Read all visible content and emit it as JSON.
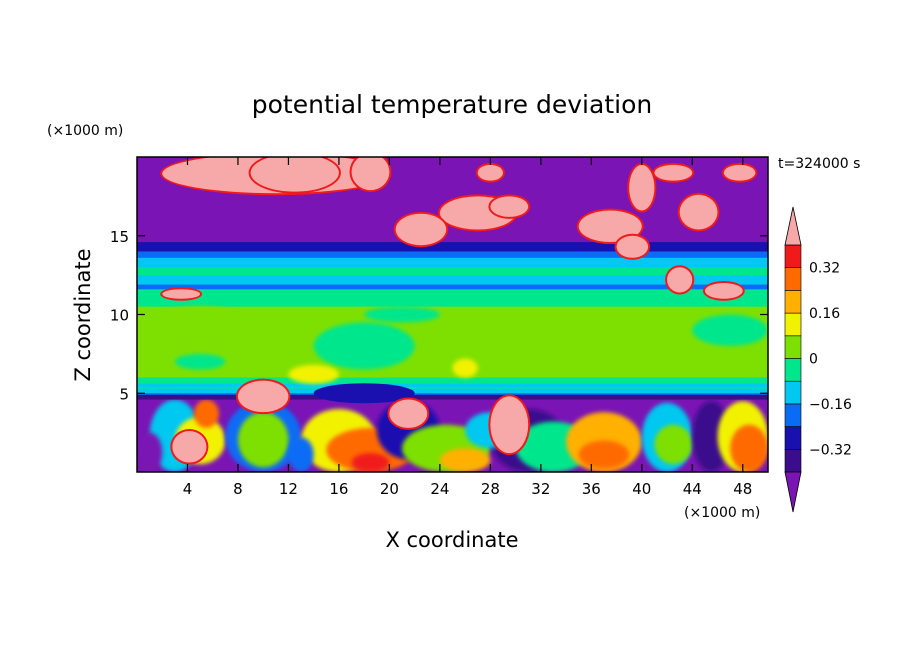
{
  "chart_data": {
    "type": "heatmap",
    "title": "potential temperature deviation",
    "time_label": "t=324000 s",
    "xlabel": "X coordinate",
    "ylabel": "Z coordinate",
    "x_unit": "(×1000 m)",
    "y_unit": "(×1000 m)",
    "xlim": [
      0,
      50
    ],
    "ylim": [
      0,
      20
    ],
    "x_ticks": [
      4,
      8,
      12,
      16,
      20,
      24,
      28,
      32,
      36,
      40,
      44,
      48
    ],
    "y_ticks": [
      5,
      10,
      15
    ],
    "colorbar": {
      "levels": [
        -0.4,
        -0.32,
        -0.24,
        -0.16,
        -0.08,
        0,
        0.08,
        0.16,
        0.24,
        0.32,
        0.4
      ],
      "colors": [
        "#3b0d8c",
        "#1a10b0",
        "#0a6cf5",
        "#00c8f0",
        "#00e68c",
        "#7ee000",
        "#f2f200",
        "#ffb000",
        "#ff6a00",
        "#f01a1a"
      ],
      "under_color": "#7a14b4",
      "over_color": "#f7a8a8",
      "tick_labels": [
        "0.32",
        "0.16",
        "0",
        "−0.16",
        "−0.32"
      ],
      "tick_values": [
        0.32,
        0.16,
        0,
        -0.16,
        -0.32
      ]
    },
    "grid": false,
    "legend": "colorbar-right"
  }
}
